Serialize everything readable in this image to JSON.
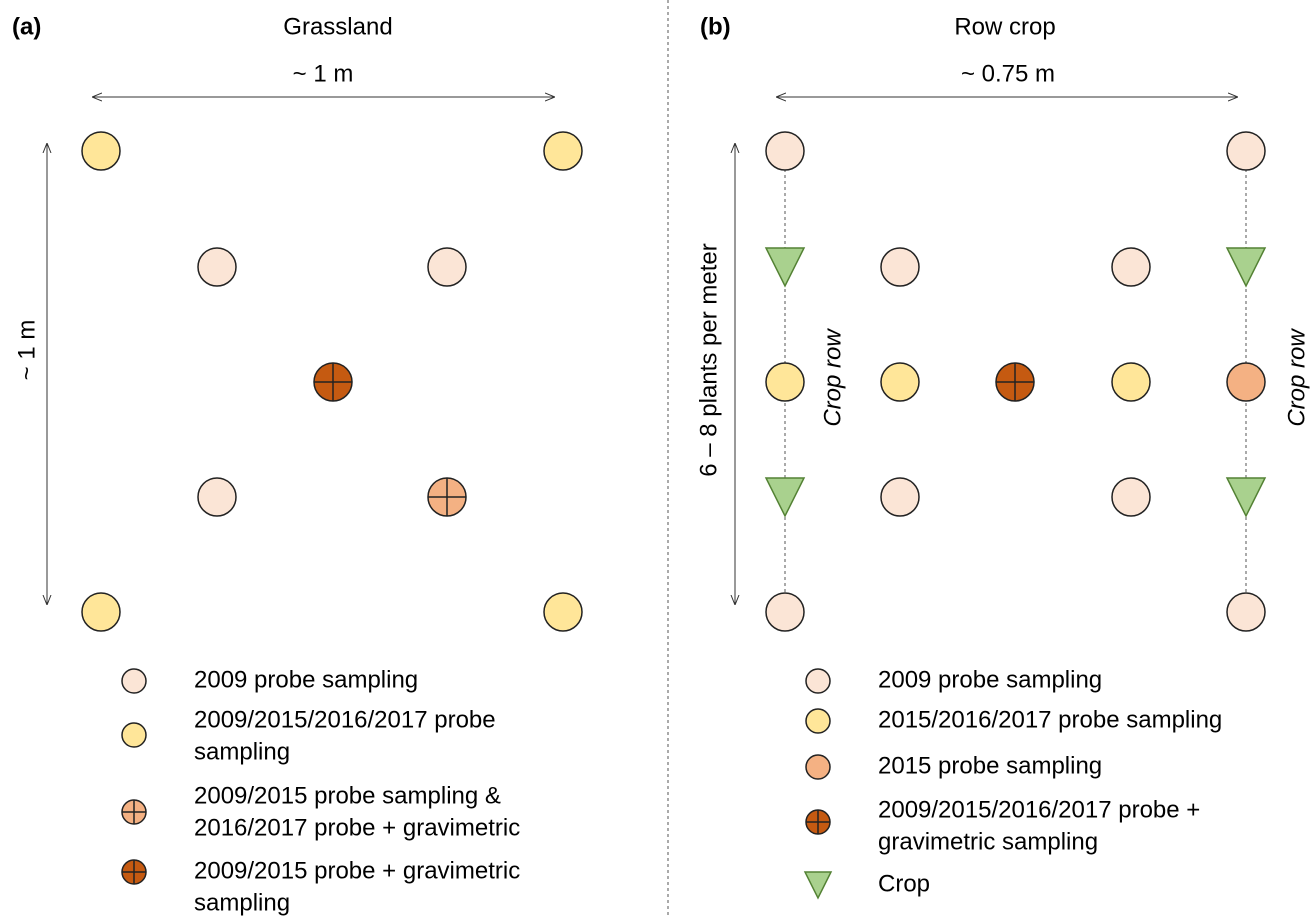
{
  "panels": [
    {
      "label": "(a)",
      "title": "Grassland",
      "width_label": "~ 1 m",
      "height_label": "~ 1 m",
      "legend": [
        {
          "lines": [
            "2009 probe sampling"
          ]
        },
        {
          "lines": [
            "2009/2015/2016/2017 probe",
            "sampling"
          ]
        },
        {
          "lines": [
            "2009/2015 probe sampling &",
            "2016/2017 probe + gravimetric"
          ]
        },
        {
          "lines": [
            "2009/2015 probe + gravimetric",
            "sampling"
          ]
        }
      ]
    },
    {
      "label": "(b)",
      "title": "Row crop",
      "width_label": "~ 0.75 m",
      "height_label": "6 – 8 plants per meter",
      "row_labels": [
        "Crop row",
        "Crop row"
      ],
      "legend": [
        {
          "lines": [
            "2009 probe sampling"
          ]
        },
        {
          "lines": [
            "2015/2016/2017 probe sampling"
          ]
        },
        {
          "lines": [
            "2015 probe sampling"
          ]
        },
        {
          "lines": [
            "2009/2015/2016/2017 probe +",
            "gravimetric sampling"
          ]
        },
        {
          "lines": [
            "Crop"
          ]
        }
      ]
    }
  ]
}
